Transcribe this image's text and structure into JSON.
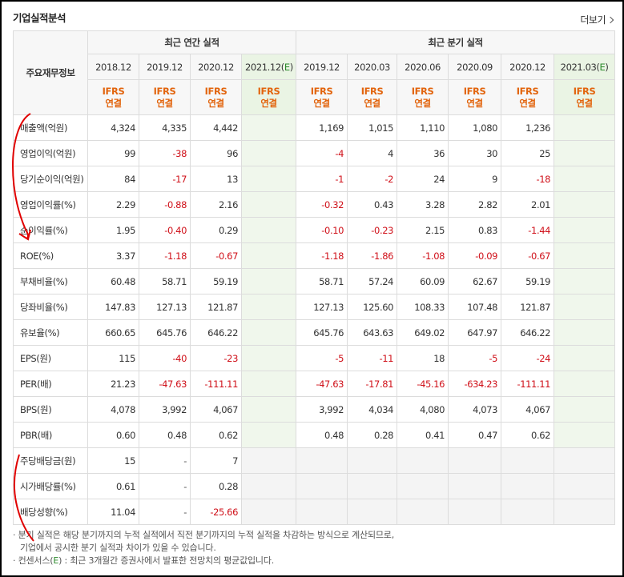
{
  "header": {
    "title": "기업실적분석",
    "more_label": "더보기"
  },
  "table": {
    "row_label_header": "주요재무정보",
    "group_annual": "최근 연간 실적",
    "group_quarter": "최근 분기 실적",
    "periods": [
      {
        "label": "2018.12",
        "est": false,
        "tag1": "IFRS",
        "tag2": "연결"
      },
      {
        "label": "2019.12",
        "est": false,
        "tag1": "IFRS",
        "tag2": "연결"
      },
      {
        "label": "2020.12",
        "est": false,
        "tag1": "IFRS",
        "tag2": "연결"
      },
      {
        "label": "2021.12",
        "est": true,
        "tag1": "IFRS",
        "tag2": "연결"
      },
      {
        "label": "2019.12",
        "est": false,
        "tag1": "IFRS",
        "tag2": "연결"
      },
      {
        "label": "2020.03",
        "est": false,
        "tag1": "IFRS",
        "tag2": "연결"
      },
      {
        "label": "2020.06",
        "est": false,
        "tag1": "IFRS",
        "tag2": "연결"
      },
      {
        "label": "2020.09",
        "est": false,
        "tag1": "IFRS",
        "tag2": "연결"
      },
      {
        "label": "2020.12",
        "est": false,
        "tag1": "IFRS",
        "tag2": "연결"
      },
      {
        "label": "2021.03",
        "est": true,
        "tag1": "IFRS",
        "tag2": "연결"
      }
    ],
    "est_mark": "E",
    "rows": [
      {
        "label": "매출액(억원)",
        "values": [
          "4,324",
          "4,335",
          "4,442",
          "",
          "1,169",
          "1,015",
          "1,110",
          "1,080",
          "1,236",
          ""
        ],
        "sep": false
      },
      {
        "label": "영업이익(억원)",
        "values": [
          "99",
          "-38",
          "96",
          "",
          "-4",
          "4",
          "36",
          "30",
          "25",
          ""
        ],
        "sep": false
      },
      {
        "label": "당기순이익(억원)",
        "values": [
          "84",
          "-17",
          "13",
          "",
          "-1",
          "-2",
          "24",
          "9",
          "-18",
          ""
        ],
        "sep": false
      },
      {
        "label": "영업이익률(%)",
        "values": [
          "2.29",
          "-0.88",
          "2.16",
          "",
          "-0.32",
          "0.43",
          "3.28",
          "2.82",
          "2.01",
          ""
        ],
        "sep": true
      },
      {
        "label": "순이익률(%)",
        "values": [
          "1.95",
          "-0.40",
          "0.29",
          "",
          "-0.10",
          "-0.23",
          "2.15",
          "0.83",
          "-1.44",
          ""
        ],
        "sep": false
      },
      {
        "label": "ROE(%)",
        "values": [
          "3.37",
          "-1.18",
          "-0.67",
          "",
          "-1.18",
          "-1.86",
          "-1.08",
          "-0.09",
          "-0.67",
          ""
        ],
        "sep": false
      },
      {
        "label": "부채비율(%)",
        "values": [
          "60.48",
          "58.71",
          "59.19",
          "",
          "58.71",
          "57.24",
          "60.09",
          "62.67",
          "59.19",
          ""
        ],
        "sep": true
      },
      {
        "label": "당좌비율(%)",
        "values": [
          "147.83",
          "127.13",
          "121.87",
          "",
          "127.13",
          "125.60",
          "108.33",
          "107.48",
          "121.87",
          ""
        ],
        "sep": false
      },
      {
        "label": "유보율(%)",
        "values": [
          "660.65",
          "645.76",
          "646.22",
          "",
          "645.76",
          "643.63",
          "649.02",
          "647.97",
          "646.22",
          ""
        ],
        "sep": false
      },
      {
        "label": "EPS(원)",
        "values": [
          "115",
          "-40",
          "-23",
          "",
          "-5",
          "-11",
          "18",
          "-5",
          "-24",
          ""
        ],
        "sep": true
      },
      {
        "label": "PER(배)",
        "values": [
          "21.23",
          "-47.63",
          "-111.11",
          "",
          "-47.63",
          "-17.81",
          "-45.16",
          "-634.23",
          "-111.11",
          ""
        ],
        "sep": false
      },
      {
        "label": "BPS(원)",
        "values": [
          "4,078",
          "3,992",
          "4,067",
          "",
          "3,992",
          "4,034",
          "4,080",
          "4,073",
          "4,067",
          ""
        ],
        "sep": false
      },
      {
        "label": "PBR(배)",
        "values": [
          "0.60",
          "0.48",
          "0.62",
          "",
          "0.48",
          "0.28",
          "0.41",
          "0.47",
          "0.62",
          ""
        ],
        "sep": false
      },
      {
        "label": "주당배당금(원)",
        "values": [
          "15",
          "-",
          "7",
          "",
          "",
          "",
          "",
          "",
          "",
          ""
        ],
        "sep": true,
        "dividend": true
      },
      {
        "label": "시가배당률(%)",
        "values": [
          "0.61",
          "-",
          "0.28",
          "",
          "",
          "",
          "",
          "",
          "",
          ""
        ],
        "sep": false,
        "dividend": true
      },
      {
        "label": "배당성향(%)",
        "values": [
          "11.04",
          "-",
          "-25.66",
          "",
          "",
          "",
          "",
          "",
          "",
          ""
        ],
        "sep": false,
        "dividend": true
      }
    ]
  },
  "notes": {
    "line1": "분기 실적은 해당 분기까지의 누적 실적에서 직전 분기까지의 누적 실적을 차감하는 방식으로 계산되므로,",
    "line2": "기업에서 공시한 분기 실적과 차이가 있을 수 있습니다.",
    "line3_pre": "컨센서스(",
    "line3_e": "E",
    "line3_post": ") : 최근 3개월간 증권사에서 발표한 전망치의 평균값입니다."
  },
  "colors": {
    "negative": "#d0111a",
    "ifrs_tag": "#e2640d",
    "estimate_bg": "#f0f7ec",
    "annotation": "#e00000"
  }
}
